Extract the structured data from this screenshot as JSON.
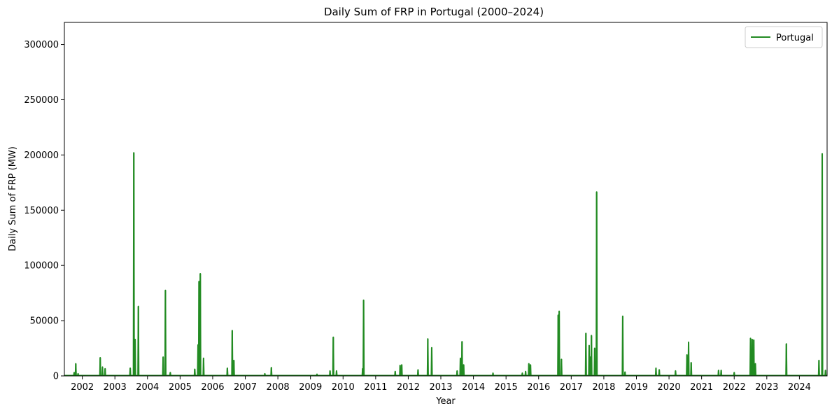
{
  "chart_data": {
    "type": "line",
    "title": "Daily Sum of FRP in Portugal (2000–2024)",
    "xlabel": "Year",
    "ylabel": "Daily Sum of FRP (MW)",
    "xlim": [
      2001.45,
      2024.85
    ],
    "ylim": [
      0,
      320000
    ],
    "x_ticks": [
      2002,
      2003,
      2004,
      2005,
      2006,
      2007,
      2008,
      2009,
      2010,
      2011,
      2012,
      2013,
      2014,
      2015,
      2016,
      2017,
      2018,
      2019,
      2020,
      2021,
      2022,
      2023,
      2024
    ],
    "y_ticks": [
      0,
      50000,
      100000,
      150000,
      200000,
      250000,
      300000
    ],
    "grid": false,
    "legend_position": "top-right",
    "color": "#228b22",
    "series": [
      {
        "name": "Portugal",
        "peaks": [
          [
            2001.75,
            3000
          ],
          [
            2001.8,
            11000
          ],
          [
            2001.87,
            2000
          ],
          [
            2002.55,
            16500
          ],
          [
            2002.62,
            8000
          ],
          [
            2002.7,
            6500
          ],
          [
            2003.47,
            7000
          ],
          [
            2003.58,
            202000
          ],
          [
            2003.62,
            33000
          ],
          [
            2003.72,
            63000
          ],
          [
            2004.48,
            17000
          ],
          [
            2004.55,
            77500
          ],
          [
            2004.7,
            3000
          ],
          [
            2005.45,
            6000
          ],
          [
            2005.55,
            28000
          ],
          [
            2005.58,
            85500
          ],
          [
            2005.62,
            92500
          ],
          [
            2005.72,
            16000
          ],
          [
            2006.45,
            7000
          ],
          [
            2006.6,
            41000
          ],
          [
            2006.65,
            14000
          ],
          [
            2007.6,
            2000
          ],
          [
            2007.8,
            7500
          ],
          [
            2009.2,
            1500
          ],
          [
            2009.6,
            4500
          ],
          [
            2009.7,
            35000
          ],
          [
            2009.8,
            4500
          ],
          [
            2010.6,
            6500
          ],
          [
            2010.63,
            68500
          ],
          [
            2011.6,
            4000
          ],
          [
            2011.75,
            9500
          ],
          [
            2011.8,
            10000
          ],
          [
            2012.3,
            5500
          ],
          [
            2012.6,
            33500
          ],
          [
            2012.72,
            25500
          ],
          [
            2013.5,
            4500
          ],
          [
            2013.6,
            16000
          ],
          [
            2013.65,
            31000
          ],
          [
            2013.7,
            10000
          ],
          [
            2014.6,
            2500
          ],
          [
            2015.5,
            2500
          ],
          [
            2015.6,
            4000
          ],
          [
            2015.7,
            11000
          ],
          [
            2015.75,
            10000
          ],
          [
            2016.6,
            55000
          ],
          [
            2016.63,
            58500
          ],
          [
            2016.7,
            15000
          ],
          [
            2017.45,
            38500
          ],
          [
            2017.55,
            27500
          ],
          [
            2017.58,
            17000
          ],
          [
            2017.62,
            36500
          ],
          [
            2017.72,
            25000
          ],
          [
            2017.78,
            166500
          ],
          [
            2018.58,
            54000
          ],
          [
            2018.65,
            3500
          ],
          [
            2019.6,
            7000
          ],
          [
            2019.7,
            5500
          ],
          [
            2020.2,
            4500
          ],
          [
            2020.55,
            19000
          ],
          [
            2020.6,
            30500
          ],
          [
            2020.68,
            12000
          ],
          [
            2021.52,
            5000
          ],
          [
            2021.6,
            5000
          ],
          [
            2022.0,
            3000
          ],
          [
            2022.5,
            34000
          ],
          [
            2022.55,
            33000
          ],
          [
            2022.6,
            32500
          ],
          [
            2022.65,
            11000
          ],
          [
            2023.6,
            29000
          ],
          [
            2024.6,
            14000
          ],
          [
            2024.7,
            201000
          ],
          [
            2024.8,
            5000
          ]
        ]
      }
    ]
  }
}
